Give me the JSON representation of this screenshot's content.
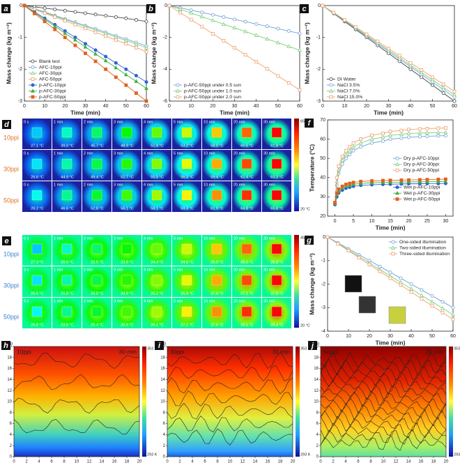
{
  "chart_data": [
    {
      "type": "line",
      "label": "a",
      "x_label": "Time (min)",
      "y_label": "Mass change (kg m⁻²)",
      "x": [
        0,
        5,
        10,
        15,
        20,
        25,
        30,
        35,
        40,
        45,
        50,
        55,
        60
      ],
      "xlim": [
        0,
        60
      ],
      "xticks": [
        0,
        10,
        20,
        30,
        40,
        50,
        60
      ],
      "ylim": [
        -3,
        0
      ],
      "yticks": [
        -3,
        -2,
        -1,
        0
      ],
      "legend": "lower left",
      "series": [
        {
          "name": "Blank test",
          "color": "#444444",
          "marker": "circle",
          "filled": false,
          "values": [
            0,
            -0.04,
            -0.08,
            -0.12,
            -0.16,
            -0.2,
            -0.24,
            -0.28,
            -0.32,
            -0.36,
            -0.4,
            -0.45,
            -0.5
          ]
        },
        {
          "name": "AFC-10ppi",
          "color": "#6f9fd8",
          "marker": "circle",
          "filled": false,
          "values": [
            0,
            -0.1,
            -0.2,
            -0.31,
            -0.42,
            -0.52,
            -0.63,
            -0.73,
            -0.84,
            -0.95,
            -1.05,
            -1.16,
            -1.27
          ]
        },
        {
          "name": "AFC-30ppi",
          "color": "#7ccf7a",
          "marker": "triangle",
          "filled": false,
          "values": [
            0,
            -0.11,
            -0.22,
            -0.33,
            -0.44,
            -0.55,
            -0.66,
            -0.77,
            -0.88,
            -0.99,
            -1.1,
            -1.21,
            -1.33
          ]
        },
        {
          "name": "AFC-50ppi",
          "color": "#f0a070",
          "marker": "square",
          "filled": false,
          "values": [
            0,
            -0.12,
            -0.24,
            -0.36,
            -0.48,
            -0.6,
            -0.72,
            -0.84,
            -0.96,
            -1.08,
            -1.2,
            -1.32,
            -1.45
          ]
        },
        {
          "name": "p-AFC-10ppi",
          "color": "#3060d8",
          "marker": "circle",
          "filled": true,
          "values": [
            0,
            -0.2,
            -0.4,
            -0.6,
            -0.8,
            -1.0,
            -1.2,
            -1.4,
            -1.6,
            -1.8,
            -2.0,
            -2.2,
            -2.4
          ]
        },
        {
          "name": "p-AFC-30ppi",
          "color": "#40b040",
          "marker": "triangle",
          "filled": true,
          "values": [
            0,
            -0.22,
            -0.44,
            -0.65,
            -0.87,
            -1.08,
            -1.3,
            -1.52,
            -1.73,
            -1.95,
            -2.17,
            -2.38,
            -2.6
          ]
        },
        {
          "name": "p-AFC-50ppi",
          "color": "#e06020",
          "marker": "square",
          "filled": true,
          "values": [
            0,
            -0.25,
            -0.5,
            -0.75,
            -1.0,
            -1.25,
            -1.5,
            -1.75,
            -2.0,
            -2.25,
            -2.5,
            -2.75,
            -3.0
          ]
        }
      ]
    },
    {
      "type": "line",
      "label": "b",
      "x_label": "Time (min)",
      "y_label": "Mass change (kg m⁻²)",
      "x": [
        0,
        5,
        10,
        15,
        20,
        25,
        30,
        35,
        40,
        45,
        50,
        55,
        60
      ],
      "xlim": [
        0,
        60
      ],
      "xticks": [
        0,
        10,
        20,
        30,
        40,
        50,
        60
      ],
      "ylim": [
        -6,
        0
      ],
      "yticks": [
        -6,
        -4,
        -2,
        0
      ],
      "legend": "lower left",
      "series": [
        {
          "name": "p-AFC-50ppi under 0.5 sun",
          "color": "#6f9fd8",
          "marker": "circle",
          "filled": false,
          "values": [
            0,
            -0.14,
            -0.29,
            -0.43,
            -0.58,
            -0.72,
            -0.87,
            -1.01,
            -1.16,
            -1.3,
            -1.45,
            -1.6,
            -1.75
          ]
        },
        {
          "name": "p-AFC-50ppi under 1.0 sun",
          "color": "#7ccf7a",
          "marker": "triangle",
          "filled": false,
          "values": [
            0,
            -0.23,
            -0.47,
            -0.7,
            -0.93,
            -1.17,
            -1.4,
            -1.63,
            -1.87,
            -2.1,
            -2.33,
            -2.57,
            -2.8
          ]
        },
        {
          "name": "p-AFC-50ppi under 2.0 sun",
          "color": "#f0a070",
          "marker": "square",
          "filled": false,
          "values": [
            0,
            -0.44,
            -0.88,
            -1.32,
            -1.77,
            -2.21,
            -2.65,
            -3.09,
            -3.53,
            -3.97,
            -4.42,
            -4.86,
            -5.3
          ]
        }
      ]
    },
    {
      "type": "line",
      "label": "c",
      "x_label": "Time (min)",
      "y_label": "Mass change (kg m⁻²)",
      "x": [
        0,
        5,
        10,
        15,
        20,
        25,
        30,
        35,
        40,
        45,
        50,
        55,
        60
      ],
      "xlim": [
        0,
        60
      ],
      "xticks": [
        0,
        10,
        20,
        30,
        40,
        50,
        60
      ],
      "ylim": [
        -3,
        0
      ],
      "yticks": [
        -3,
        -2,
        -1,
        0
      ],
      "legend": "lower left",
      "series": [
        {
          "name": "DI Water",
          "color": "#444444",
          "marker": "circle",
          "filled": false,
          "values": [
            0,
            -0.25,
            -0.5,
            -0.75,
            -1.0,
            -1.25,
            -1.5,
            -1.75,
            -2.0,
            -2.25,
            -2.5,
            -2.75,
            -3.0
          ]
        },
        {
          "name": "NaCl 3.5%",
          "color": "#6f9fd8",
          "marker": "circle",
          "filled": false,
          "values": [
            0,
            -0.24,
            -0.48,
            -0.72,
            -0.96,
            -1.2,
            -1.44,
            -1.68,
            -1.92,
            -2.16,
            -2.4,
            -2.64,
            -2.88
          ]
        },
        {
          "name": "NaCl 7.0%",
          "color": "#7ccf7a",
          "marker": "triangle",
          "filled": false,
          "values": [
            0,
            -0.23,
            -0.47,
            -0.7,
            -0.93,
            -1.17,
            -1.4,
            -1.63,
            -1.87,
            -2.1,
            -2.33,
            -2.57,
            -2.8
          ]
        },
        {
          "name": "NaCl 15.0%",
          "color": "#f0a070",
          "marker": "square",
          "filled": false,
          "values": [
            0,
            -0.22,
            -0.45,
            -0.67,
            -0.9,
            -1.12,
            -1.35,
            -1.57,
            -1.8,
            -2.02,
            -2.25,
            -2.47,
            -2.7
          ]
        }
      ]
    },
    {
      "type": "line",
      "label": "f",
      "x_label": "Time (min)",
      "y_label": "Temperature (°C)",
      "x": [
        0,
        0.5,
        1,
        2,
        3,
        4,
        5,
        7,
        10,
        13,
        15,
        18,
        20,
        23,
        25,
        28,
        30
      ],
      "xlim": [
        -2,
        32
      ],
      "xticks": [
        0,
        5,
        10,
        15,
        20,
        25,
        30
      ],
      "ylim": [
        20,
        70
      ],
      "yticks": [
        20,
        30,
        40,
        50,
        60,
        70
      ],
      "legend": "right",
      "series": [
        {
          "name": "Dry p-AFC-10ppi",
          "color": "#6f9fd8",
          "marker": "circle",
          "filled": false,
          "values": [
            26,
            36,
            42,
            47,
            50,
            52,
            54,
            56,
            58,
            59,
            60,
            60.5,
            61,
            61.3,
            61.5,
            61.7,
            61.8
          ]
        },
        {
          "name": "Dry p-AFC-30ppi",
          "color": "#7ccf7a",
          "marker": "triangle",
          "filled": false,
          "values": [
            27,
            38,
            44,
            49,
            52,
            54,
            56,
            58,
            60,
            61,
            62,
            62.5,
            63,
            63.2,
            63.3,
            63.4,
            63.5
          ]
        },
        {
          "name": "Dry p-AFC-50ppi",
          "color": "#f0a070",
          "marker": "square",
          "filled": false,
          "values": [
            27,
            40,
            46,
            51,
            54,
            56,
            58,
            60,
            62,
            63,
            64,
            64.5,
            65,
            65.3,
            65.5,
            65.7,
            65.8
          ]
        },
        {
          "name": "Wet p-AFC-10ppi",
          "color": "#3060d8",
          "marker": "circle",
          "filled": true,
          "values": [
            26,
            30,
            32,
            33.5,
            34.5,
            35,
            35.5,
            36,
            36.3,
            36.5,
            36.6,
            36.7,
            36.8,
            36.8,
            36.9,
            36.9,
            37
          ]
        },
        {
          "name": "Wet p-AFC-30ppi",
          "color": "#40b040",
          "marker": "triangle",
          "filled": true,
          "values": [
            26.5,
            31,
            33,
            34.5,
            35.5,
            36,
            36.5,
            37,
            37.3,
            37.5,
            37.6,
            37.7,
            37.8,
            37.8,
            37.9,
            37.9,
            38
          ]
        },
        {
          "name": "Wet p-AFC-50ppi",
          "color": "#e06020",
          "marker": "square",
          "filled": true,
          "values": [
            27,
            32,
            34,
            35.5,
            36.5,
            37,
            37.5,
            38,
            38.3,
            38.5,
            38.6,
            38.7,
            38.8,
            38.9,
            39,
            39.1,
            39.2
          ]
        }
      ]
    },
    {
      "type": "line",
      "label": "g",
      "x_label": "Time (min)",
      "y_label": "Mass change (kg m⁻²)",
      "x": [
        0,
        5,
        10,
        15,
        20,
        25,
        30,
        35,
        40,
        45,
        50,
        55,
        60
      ],
      "xlim": [
        0,
        60
      ],
      "xticks": [
        0,
        10,
        20,
        30,
        40,
        50,
        60
      ],
      "ylim": [
        -4,
        0
      ],
      "yticks": [
        -4,
        -3,
        -2,
        -1,
        0
      ],
      "legend": "upper right",
      "series": [
        {
          "name": "One-sided illumination",
          "color": "#6f9fd8",
          "marker": "circle",
          "filled": false,
          "values": [
            0,
            -0.25,
            -0.5,
            -0.75,
            -1.0,
            -1.25,
            -1.5,
            -1.75,
            -2.0,
            -2.25,
            -2.5,
            -2.75,
            -3.0
          ]
        },
        {
          "name": "Two-sided illumination",
          "color": "#7ccf7a",
          "marker": "triangle",
          "filled": false,
          "values": [
            0,
            -0.28,
            -0.55,
            -0.83,
            -1.1,
            -1.38,
            -1.65,
            -1.93,
            -2.2,
            -2.48,
            -2.75,
            -3.03,
            -3.3
          ]
        },
        {
          "name": "Three-sided illumination",
          "color": "#f0a070",
          "marker": "square",
          "filled": false,
          "values": [
            0,
            -0.29,
            -0.58,
            -0.88,
            -1.17,
            -1.46,
            -1.75,
            -2.04,
            -2.33,
            -2.63,
            -2.92,
            -3.21,
            -3.5
          ]
        }
      ]
    }
  ],
  "thermal_images": [
    {
      "label": "d",
      "row_color": "#e07020",
      "times": [
        "0 s",
        "1 min",
        "2 min",
        "3 min",
        "4 min",
        "5 min",
        "10 min",
        "20 min",
        "30 min"
      ],
      "colorbar": [
        "65 °C",
        "20 °C"
      ],
      "rows": [
        {
          "name": "10ppi",
          "temps": [
            "27.1 °C",
            "39.0 °C",
            "45.7 °C",
            "48.9 °C",
            "51.8 °C",
            "53.2 °C",
            "58.0 °C",
            "60.6 °C",
            "61.8 °C"
          ]
        },
        {
          "name": "30ppi",
          "temps": [
            "26.6 °C",
            "44.9 °C",
            "49.4 °C",
            "52.7 °C",
            "55.5 °C",
            "56.3 °C",
            "59.4 °C",
            "62.4 °C",
            "63.3 °C"
          ]
        },
        {
          "name": "50ppi",
          "temps": [
            "26.2 °C",
            "46.6 °C",
            "52.8 °C",
            "56.1 °C",
            "58.1 °C",
            "59.3 °C",
            "61.9 °C",
            "64.8 °C",
            "65.8 °C"
          ]
        }
      ]
    },
    {
      "label": "e",
      "row_color": "#3a80d0",
      "times": [
        "0 s",
        "1 min",
        "2 min",
        "3 min",
        "4 min",
        "5 min",
        "10 min",
        "20 min",
        "30 min"
      ],
      "colorbar": [
        "45 °C",
        "20 °C"
      ],
      "rows": [
        {
          "name": "10ppi",
          "temps": [
            "27.3 °C",
            "30.0 °C",
            "32.5 °C",
            "33.8 °C",
            "34.4 °C",
            "34.6 °C",
            "35.9 °C",
            "36.6 °C",
            "36.8 °C"
          ]
        },
        {
          "name": "30ppi",
          "temps": [
            "26.5 °C",
            "31.8 °C",
            "33.8 °C",
            "34.9 °C",
            "35.2 °C",
            "35.9 °C",
            "37.6 °C",
            "37.1 °C",
            "37.8 °C"
          ]
        },
        {
          "name": "50ppi",
          "temps": [
            "26.8 °C",
            "33.8 °C",
            "35.4 °C",
            "35.9 °C",
            "36.1 °C",
            "37.1 °C",
            "37.6 °C",
            "39.1 °C",
            "39.4 °C"
          ]
        }
      ]
    }
  ],
  "maps": [
    {
      "label": "h",
      "sample": "10ppi",
      "time": "30 min",
      "unit": "mm",
      "xticks": [
        0,
        2,
        4,
        6,
        8,
        10,
        12,
        14,
        16,
        18,
        20
      ],
      "yticks": [
        0,
        2,
        4,
        6,
        8,
        10,
        12,
        14,
        16,
        18,
        20
      ],
      "colorbar": [
        "353 K",
        "293 K"
      ]
    },
    {
      "label": "i",
      "sample": "30ppi",
      "time": "30 min",
      "unit": "mm",
      "xticks": [
        0,
        2,
        4,
        6,
        8,
        10,
        12,
        14,
        16,
        18,
        20
      ],
      "yticks": [
        0,
        2,
        4,
        6,
        8,
        10,
        12,
        14,
        16,
        18,
        20
      ],
      "colorbar": [
        "353 K",
        "293 K"
      ]
    },
    {
      "label": "j",
      "sample": "50ppi",
      "time": "30 min",
      "unit": "mm",
      "xticks": [
        0,
        2,
        4,
        6,
        8,
        10,
        12,
        14,
        16,
        18,
        20
      ],
      "yticks": [
        0,
        2,
        4,
        6,
        8,
        10,
        12,
        14,
        16,
        18,
        20
      ],
      "colorbar": [
        "353 K",
        "293 K"
      ]
    }
  ]
}
